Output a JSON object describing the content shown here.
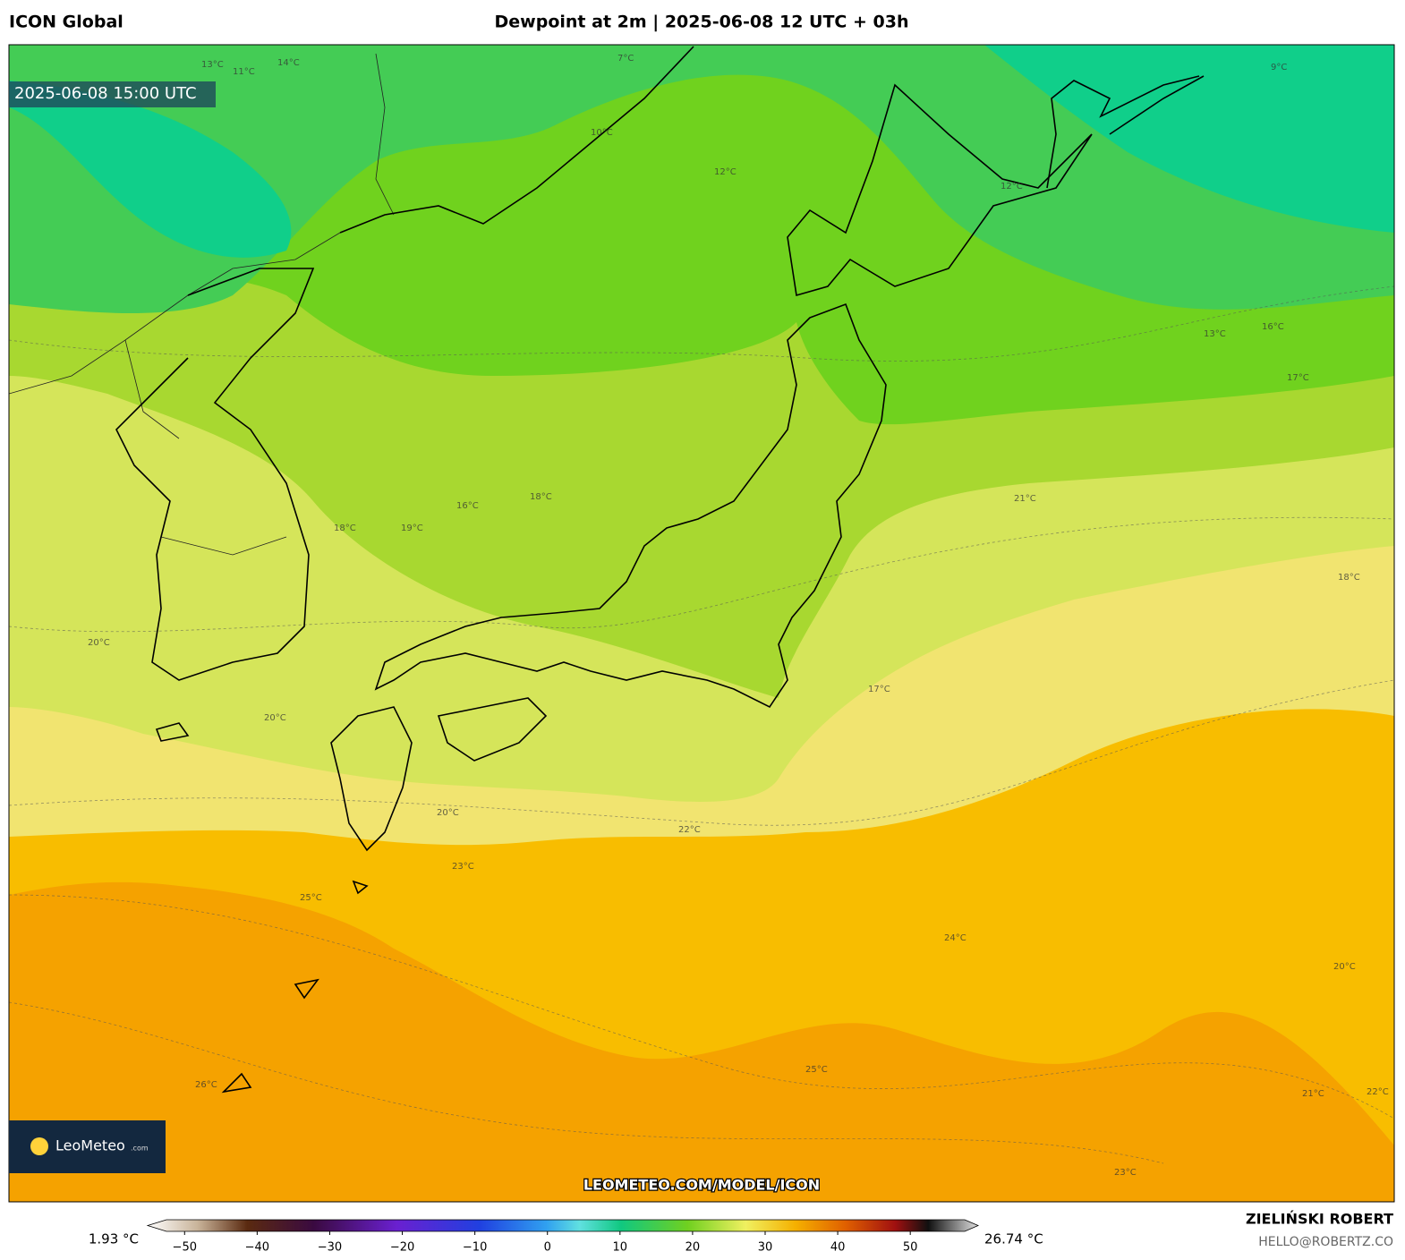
{
  "header": {
    "model": "ICON Global",
    "title": "Dewpoint at 2m | 2025-06-08 12 UTC + 03h"
  },
  "map": {
    "valid_time": "2025-06-08 15:00 UTC",
    "logo": "LeoMeteo",
    "logo_suffix": ".com",
    "watermark": "LEOMETEO.COM/MODEL/ICON",
    "contour_labels": [
      "13°C",
      "14°C",
      "11°C",
      "7°C",
      "10°C",
      "12°C",
      "9°C",
      "12°C",
      "13°C",
      "16°C",
      "17°C",
      "16°C",
      "18°C",
      "18°C",
      "19°C",
      "20°C",
      "20°C",
      "20°C",
      "21°C",
      "18°C",
      "17°C",
      "22°C",
      "23°C",
      "25°C",
      "24°C",
      "25°C",
      "26°C",
      "21°C",
      "22°C",
      "23°C",
      "20°C"
    ]
  },
  "colorbar": {
    "min_label": "1.93 °C",
    "max_label": "26.74 °C",
    "lim": [
      -52.5,
      57.5
    ],
    "ticks": [
      {
        "value": -50,
        "label": "−50"
      },
      {
        "value": -40,
        "label": "−40"
      },
      {
        "value": -30,
        "label": "−30"
      },
      {
        "value": -20,
        "label": "−20"
      },
      {
        "value": -10,
        "label": "−10"
      },
      0,
      10,
      20,
      30,
      40,
      50
    ]
  },
  "footer": {
    "author": "ZIELIŃSKI ROBERT",
    "email": "HELLO@ROBERTZ.CO"
  }
}
